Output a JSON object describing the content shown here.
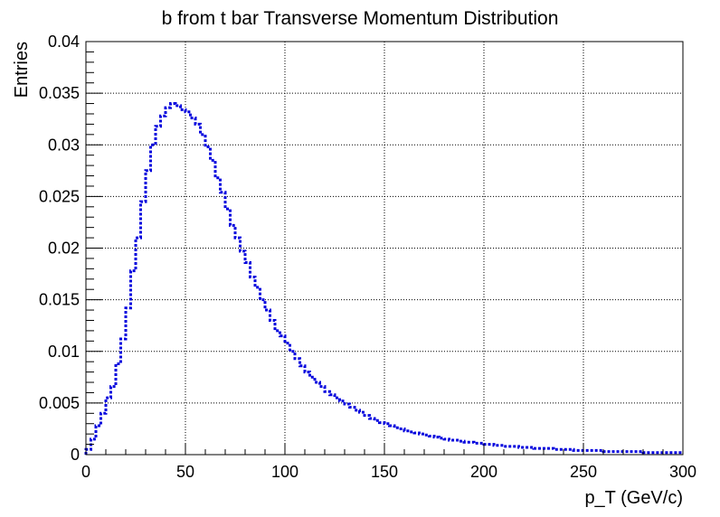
{
  "chart_data": {
    "type": "line",
    "style": "step histogram, dotted line",
    "title": "b from t bar Transverse Momentum Distribution",
    "xlabel": "p_T (GeV/c)",
    "ylabel": "Entries",
    "xlim": [
      0,
      300
    ],
    "ylim": [
      0,
      0.04
    ],
    "grid": true,
    "x_ticks": [
      "0",
      "50",
      "100",
      "150",
      "200",
      "250",
      "300"
    ],
    "y_ticks": [
      "0",
      "0.005",
      "0.01",
      "0.015",
      "0.02",
      "0.025",
      "0.03",
      "0.035",
      "0.04"
    ],
    "bin_width": 2.5,
    "series": [
      {
        "color": "#0000dd",
        "bin_low_edges": [
          0,
          2.5,
          5,
          7.5,
          10,
          12.5,
          15,
          17.5,
          20,
          22.5,
          25,
          27.5,
          30,
          32.5,
          35,
          37.5,
          40,
          42.5,
          45,
          47.5,
          50,
          52.5,
          55,
          57.5,
          60,
          62.5,
          65,
          67.5,
          70,
          72.5,
          75,
          77.5,
          80,
          82.5,
          85,
          87.5,
          90,
          92.5,
          95,
          97.5,
          100,
          102.5,
          105,
          107.5,
          110,
          112.5,
          115,
          117.5,
          120,
          122.5,
          125,
          127.5,
          130,
          132.5,
          135,
          137.5,
          140,
          142.5,
          145,
          147.5,
          150,
          152.5,
          155,
          157.5,
          160,
          162.5,
          165,
          167.5,
          170,
          172.5,
          175,
          177.5,
          180,
          182.5,
          185,
          187.5,
          190,
          192.5,
          195,
          197.5,
          200,
          202.5,
          205,
          207.5,
          210,
          212.5,
          215,
          217.5,
          220,
          222.5,
          225,
          227.5,
          230,
          232.5,
          235,
          237.5,
          240,
          242.5,
          245,
          247.5,
          250,
          252.5,
          255,
          257.5,
          260,
          262.5,
          265,
          267.5,
          270,
          272.5,
          275,
          277.5,
          280,
          282.5,
          285,
          287.5,
          290,
          292.5,
          295,
          297.5
        ],
        "values": [
          0.0005,
          0.0015,
          0.0028,
          0.004,
          0.0055,
          0.0066,
          0.0088,
          0.0112,
          0.0142,
          0.0178,
          0.021,
          0.0245,
          0.0275,
          0.03,
          0.0318,
          0.0328,
          0.0336,
          0.034,
          0.0338,
          0.0334,
          0.0332,
          0.0326,
          0.032,
          0.031,
          0.0298,
          0.0285,
          0.0268,
          0.0254,
          0.0238,
          0.0222,
          0.021,
          0.0197,
          0.0186,
          0.0172,
          0.0162,
          0.015,
          0.014,
          0.013,
          0.012,
          0.0115,
          0.0108,
          0.01,
          0.0093,
          0.0086,
          0.008,
          0.0075,
          0.007,
          0.0066,
          0.0061,
          0.0058,
          0.0055,
          0.0052,
          0.0049,
          0.0046,
          0.0043,
          0.0041,
          0.0038,
          0.0035,
          0.0033,
          0.0031,
          0.003,
          0.0028,
          0.0026,
          0.0025,
          0.0023,
          0.0022,
          0.0021,
          0.002,
          0.0019,
          0.0018,
          0.0017,
          0.0016,
          0.0015,
          0.0014,
          0.0014,
          0.0013,
          0.0012,
          0.0012,
          0.0011,
          0.0011,
          0.001,
          0.001,
          0.0009,
          0.0009,
          0.0008,
          0.0008,
          0.0008,
          0.0007,
          0.0007,
          0.0007,
          0.0006,
          0.0006,
          0.0006,
          0.0006,
          0.0005,
          0.0005,
          0.0005,
          0.0005,
          0.0004,
          0.0004,
          0.0004,
          0.0004,
          0.0004,
          0.0004,
          0.0003,
          0.0003,
          0.0003,
          0.0003,
          0.0003,
          0.0003,
          0.0003,
          0.0003,
          0.0002,
          0.0002,
          0.0002,
          0.0002,
          0.0002,
          0.0002,
          0.0002,
          0.0002
        ]
      }
    ]
  }
}
